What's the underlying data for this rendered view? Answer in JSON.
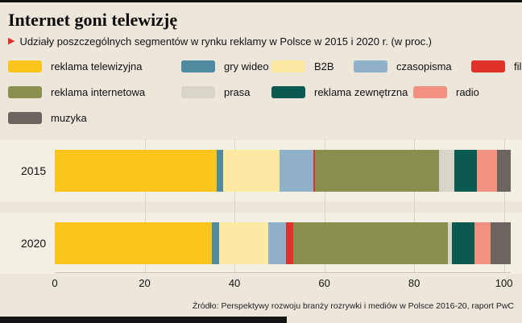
{
  "page": {
    "title": "Internet goni telewizję",
    "subtitle": "Udziały poszczególnych segmentów w rynku reklamy w Polsce w 2015 i 2020 r. (w proc.)",
    "marker_icon": "▶",
    "source": "Źródło: Perspektywy rozwoju branży rozrywki i mediów w Polsce 2016-20, raport PwC",
    "accent_red": "#e0312a",
    "background": "#ece7da"
  },
  "chart_data": {
    "type": "bar",
    "orientation": "horizontal",
    "stacked": true,
    "grid": true,
    "legend_position": "top",
    "categories": [
      "2015",
      "2020"
    ],
    "series": [
      {
        "name": "reklama telewizyjna",
        "color": "#fbc51c",
        "values": [
          36,
          35
        ]
      },
      {
        "name": "gry wideo",
        "color": "#4f8ba0",
        "values": [
          1.5,
          1.5
        ]
      },
      {
        "name": "B2B",
        "color": "#fce9a2",
        "values": [
          12.5,
          11
        ]
      },
      {
        "name": "czasopisma",
        "color": "#8fb0c9",
        "values": [
          7.5,
          4
        ]
      },
      {
        "name": "film",
        "color": "#e0312a",
        "values": [
          0.5,
          1.5
        ]
      },
      {
        "name": "reklama internetowa",
        "color": "#888f4f",
        "values": [
          27.5,
          34.5
        ]
      },
      {
        "name": "prasa",
        "color": "#d8d4c8",
        "values": [
          3.5,
          1
        ]
      },
      {
        "name": "reklama zewnętrzna",
        "color": "#0b5a52",
        "values": [
          5,
          5
        ]
      },
      {
        "name": "radio",
        "color": "#f29180",
        "values": [
          4.5,
          3.5
        ]
      },
      {
        "name": "muzyka",
        "color": "#6c645e",
        "values": [
          3,
          4.5
        ]
      }
    ],
    "xticks": [
      0,
      20,
      40,
      60,
      80,
      100
    ],
    "xlim": [
      0,
      101.5
    ]
  }
}
